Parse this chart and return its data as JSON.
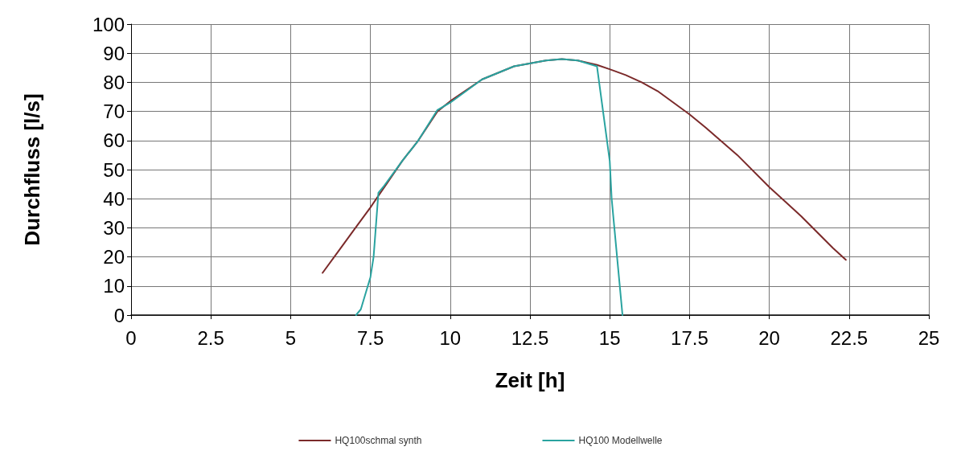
{
  "chart_data": {
    "type": "line",
    "xlabel": "Zeit [h]",
    "ylabel": "Durchfluss [l/s]",
    "xlim": [
      0,
      25
    ],
    "xticks": [
      0,
      2.5,
      5,
      7.5,
      10,
      12.5,
      15,
      17.5,
      20,
      22.5,
      25
    ],
    "ylim": [
      0,
      100
    ],
    "yticks": [
      0,
      10,
      20,
      30,
      40,
      50,
      60,
      70,
      80,
      90,
      100
    ],
    "grid": true,
    "legend": "bottom",
    "marker": "none",
    "line_style": "solid",
    "series": [
      {
        "name": "HQ100schmal synth",
        "color": "#7b2a2a",
        "x": [
          6,
          6.5,
          7,
          7.5,
          8,
          8.5,
          9,
          9.6,
          10,
          11,
          12,
          13,
          13.5,
          14,
          14.6,
          15,
          15.5,
          16,
          16.5,
          17,
          17.5,
          18,
          19,
          20,
          21,
          22,
          22.4
        ],
        "values": [
          14.5,
          22,
          29.5,
          37,
          45,
          53,
          60,
          70,
          73.5,
          81,
          85.5,
          87.5,
          88,
          87.5,
          86,
          84.5,
          82.5,
          80,
          77,
          73,
          69,
          64.5,
          55,
          44,
          34,
          23,
          19
        ]
      },
      {
        "name": "HQ100 Modellwelle",
        "color": "#2aa3a0",
        "x": [
          7.05,
          7.2,
          7.5,
          7.6,
          7.75,
          7.9,
          8.5,
          9,
          9.6,
          10,
          11,
          12,
          13,
          13.5,
          14,
          14.6,
          15,
          15.06,
          15.4
        ],
        "values": [
          0,
          2,
          13,
          20,
          42,
          44,
          53,
          60,
          70.5,
          73,
          81,
          85.5,
          87.5,
          88,
          87.5,
          85.5,
          53,
          40,
          0
        ]
      }
    ]
  }
}
